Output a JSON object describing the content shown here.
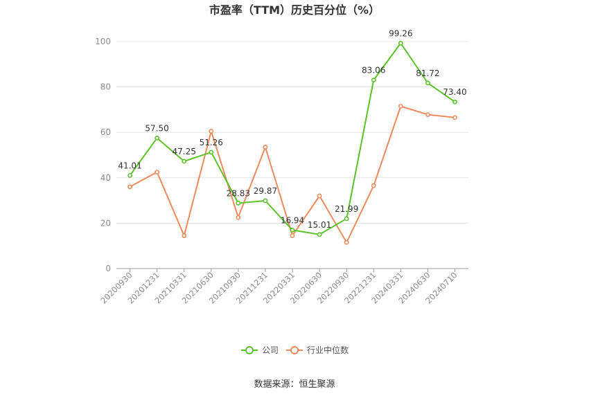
{
  "chart_data": {
    "type": "line",
    "title": "市盈率（TTM）历史百分位（%）",
    "categories": [
      "20200930",
      "20201231",
      "20210331",
      "20210630",
      "20210930",
      "20211231",
      "20220331",
      "20220630",
      "20220930",
      "20221231",
      "20240331",
      "20240630",
      "20240710"
    ],
    "ylim": [
      0,
      100
    ],
    "yticks": [
      0,
      20,
      40,
      60,
      80,
      100
    ],
    "grid": true,
    "legend_position": "bottom-center",
    "series": [
      {
        "name": "公司",
        "color": "#5cc22a",
        "values": [
          41.01,
          57.5,
          47.25,
          51.26,
          28.83,
          29.87,
          16.94,
          15.01,
          21.99,
          83.06,
          99.26,
          81.72,
          73.4
        ],
        "labels": [
          "41.01",
          "57.50",
          "47.25",
          "51.26",
          "28.83",
          "29.87",
          "16.94",
          "15.01",
          "21.99",
          "83.06",
          "99.26",
          "81.72",
          "73.40"
        ]
      },
      {
        "name": "行业中位数",
        "color": "#f08a5d",
        "values": [
          36.0,
          42.5,
          14.5,
          60.5,
          22.5,
          53.5,
          14.5,
          32.0,
          11.5,
          36.5,
          71.5,
          67.8,
          66.5
        ]
      }
    ]
  },
  "footer": {
    "source": "数据来源：恒生聚源"
  }
}
